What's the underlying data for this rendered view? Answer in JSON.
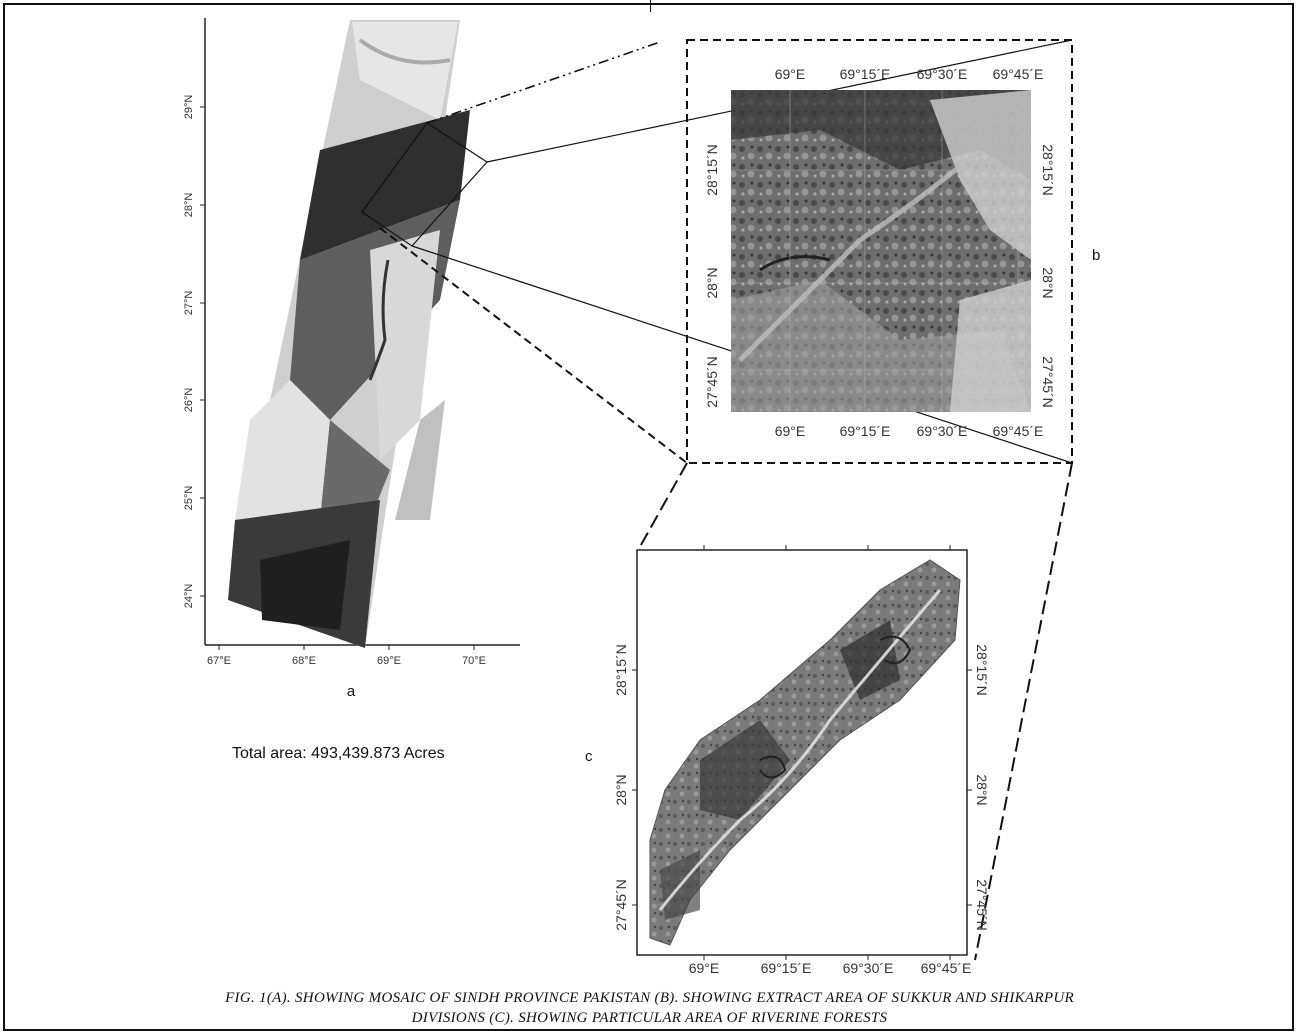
{
  "panel_a": {
    "letter": "a",
    "lat_ticks": [
      "24°N",
      "25°N",
      "26°N",
      "27°N",
      "28°N",
      "29°N"
    ],
    "lon_ticks": [
      "67°E",
      "68°E",
      "69°E",
      "70°E"
    ],
    "total_area": "Total area: 493,439.873 Acres"
  },
  "panel_b": {
    "letter": "b",
    "lon_top": [
      "69°E",
      "69°15´E",
      "69°30´E",
      "69°45´E"
    ],
    "lon_bottom": [
      "69°E",
      "69°15´E",
      "69°30´E",
      "69°45´E"
    ],
    "lat_left": [
      "28°15´N",
      "28°N",
      "27°45´N"
    ],
    "lat_right": [
      "28°15´N",
      "28°N",
      "27°45´N"
    ]
  },
  "panel_c": {
    "letter": "c",
    "lon_bottom": [
      "69°E",
      "69°15´E",
      "69°30´E",
      "69°45´E"
    ],
    "lat_left": [
      "28°15´N",
      "28°N",
      "27°45´N"
    ],
    "lat_right": [
      "28°15´N",
      "28°N",
      "27°45´N"
    ]
  },
  "caption": {
    "line1": "FIG. 1(A). SHOWING MOSAIC OF SINDH PROVINCE PAKISTAN (B). SHOWING EXTRACT AREA OF SUKKUR AND SHIKARPUR",
    "line2": "DIVISIONS (C). SHOWING PARTICULAR AREA OF RIVERINE FORESTS"
  }
}
